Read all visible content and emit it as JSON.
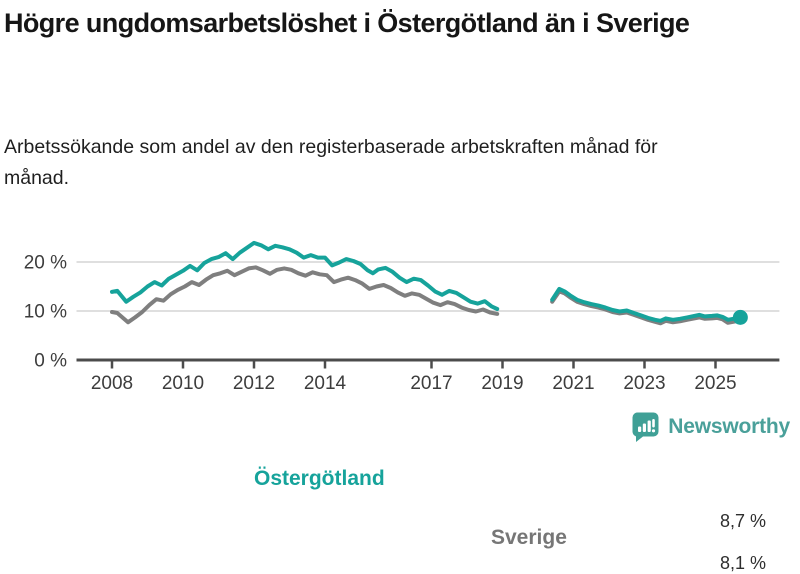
{
  "title": "Högre ungdomsarbetslöshet i Östergötland än i Sverige",
  "subtitle": "Arbetssökande som andel av den registerbaserade arbetskraften månad för månad.",
  "footer": {
    "brand": "Newsworthy",
    "logo_icon": "bar-chart-speech-bubble-icon",
    "brand_color": "#4aa09a",
    "bubble_color": "#3fa096"
  },
  "colors": {
    "ostergotland_line": "#16a39b",
    "sverige_line": "#7f7f7f",
    "gridline": "#dfdfdf",
    "axis": "#4c4c4c",
    "tick_label": "#3d3d3d"
  },
  "chart_data": {
    "type": "line",
    "title": "Högre ungdomsarbetslöshet i Östergötland än i Sverige",
    "xlabel": "",
    "ylabel": "Arbetssökande som andel av den registerbaserade arbetskraften",
    "unit": "%",
    "grid": "horizontal",
    "legend_position": "inline-labels-on-lines",
    "xlim": [
      2007.0,
      2026.8
    ],
    "ylim": [
      0,
      26
    ],
    "x_ticks": [
      2008,
      2010,
      2012,
      2014,
      2017,
      2019,
      2021,
      2023,
      2025
    ],
    "x_tick_labels": [
      "2008",
      "2010",
      "2012",
      "2014",
      "2017",
      "2019",
      "2021",
      "2023",
      "2025"
    ],
    "y_ticks": [
      0,
      10,
      20
    ],
    "y_tick_labels": [
      "0 %",
      "10 %",
      "20 %"
    ],
    "data_gap": "no data plotted between late 2018 and mid 2020",
    "series": [
      {
        "name": "Sverige",
        "color": "#7f7f7f",
        "end_label": "8,1 %",
        "end_value": 8.1,
        "end_dot": false,
        "segments": [
          [
            [
              2008.0,
              9.8
            ],
            [
              2008.15,
              9.6
            ],
            [
              2008.45,
              7.7
            ],
            [
              2008.65,
              8.7
            ],
            [
              2008.85,
              9.8
            ],
            [
              2009.05,
              11.2
            ],
            [
              2009.25,
              12.4
            ],
            [
              2009.45,
              12.1
            ],
            [
              2009.65,
              13.4
            ],
            [
              2009.85,
              14.3
            ],
            [
              2010.05,
              15.0
            ],
            [
              2010.25,
              15.9
            ],
            [
              2010.45,
              15.3
            ],
            [
              2010.65,
              16.4
            ],
            [
              2010.85,
              17.3
            ],
            [
              2011.05,
              17.7
            ],
            [
              2011.25,
              18.2
            ],
            [
              2011.45,
              17.3
            ],
            [
              2011.65,
              18.0
            ],
            [
              2011.85,
              18.7
            ],
            [
              2012.05,
              18.9
            ],
            [
              2012.25,
              18.3
            ],
            [
              2012.45,
              17.6
            ],
            [
              2012.65,
              18.4
            ],
            [
              2012.85,
              18.7
            ],
            [
              2013.05,
              18.4
            ],
            [
              2013.25,
              17.7
            ],
            [
              2013.45,
              17.2
            ],
            [
              2013.65,
              17.9
            ],
            [
              2013.85,
              17.5
            ],
            [
              2014.05,
              17.3
            ],
            [
              2014.25,
              15.9
            ],
            [
              2014.45,
              16.4
            ],
            [
              2014.65,
              16.8
            ],
            [
              2014.85,
              16.3
            ],
            [
              2015.05,
              15.6
            ],
            [
              2015.25,
              14.5
            ],
            [
              2015.45,
              15.0
            ],
            [
              2015.65,
              15.3
            ],
            [
              2015.85,
              14.7
            ],
            [
              2016.05,
              13.8
            ],
            [
              2016.25,
              13.1
            ],
            [
              2016.45,
              13.6
            ],
            [
              2016.65,
              13.3
            ],
            [
              2016.85,
              12.5
            ],
            [
              2017.05,
              11.7
            ],
            [
              2017.25,
              11.2
            ],
            [
              2017.45,
              11.8
            ],
            [
              2017.65,
              11.4
            ],
            [
              2017.85,
              10.7
            ],
            [
              2018.05,
              10.2
            ],
            [
              2018.25,
              9.9
            ],
            [
              2018.45,
              10.3
            ],
            [
              2018.65,
              9.7
            ],
            [
              2018.85,
              9.4
            ]
          ],
          [
            [
              2020.4,
              11.9
            ],
            [
              2020.6,
              14.0
            ],
            [
              2020.75,
              13.6
            ],
            [
              2020.9,
              12.8
            ],
            [
              2021.1,
              11.9
            ],
            [
              2021.3,
              11.4
            ],
            [
              2021.5,
              11.0
            ],
            [
              2021.7,
              10.7
            ],
            [
              2021.9,
              10.3
            ],
            [
              2022.1,
              9.8
            ],
            [
              2022.3,
              9.5
            ],
            [
              2022.5,
              9.7
            ],
            [
              2022.7,
              9.2
            ],
            [
              2022.9,
              8.7
            ],
            [
              2023.1,
              8.2
            ],
            [
              2023.3,
              7.8
            ],
            [
              2023.45,
              7.5
            ],
            [
              2023.6,
              8.0
            ],
            [
              2023.8,
              7.7
            ],
            [
              2024.0,
              7.9
            ],
            [
              2024.2,
              8.2
            ],
            [
              2024.4,
              8.5
            ],
            [
              2024.55,
              8.7
            ],
            [
              2024.7,
              8.4
            ],
            [
              2024.9,
              8.5
            ],
            [
              2025.05,
              8.6
            ],
            [
              2025.2,
              8.3
            ],
            [
              2025.35,
              7.6
            ],
            [
              2025.5,
              7.8
            ],
            [
              2025.7,
              8.1
            ]
          ]
        ]
      },
      {
        "name": "Östergötland",
        "color": "#16a39b",
        "end_label": "8,7 %",
        "end_value": 8.7,
        "end_dot": true,
        "segments": [
          [
            [
              2008.0,
              13.9
            ],
            [
              2008.15,
              14.1
            ],
            [
              2008.4,
              11.9
            ],
            [
              2008.6,
              12.9
            ],
            [
              2008.8,
              13.8
            ],
            [
              2009.0,
              15.0
            ],
            [
              2009.2,
              15.9
            ],
            [
              2009.4,
              15.2
            ],
            [
              2009.6,
              16.6
            ],
            [
              2009.8,
              17.4
            ],
            [
              2010.0,
              18.2
            ],
            [
              2010.2,
              19.2
            ],
            [
              2010.4,
              18.3
            ],
            [
              2010.6,
              19.8
            ],
            [
              2010.8,
              20.6
            ],
            [
              2011.0,
              21.0
            ],
            [
              2011.2,
              21.8
            ],
            [
              2011.4,
              20.6
            ],
            [
              2011.6,
              21.9
            ],
            [
              2011.8,
              22.9
            ],
            [
              2012.0,
              23.9
            ],
            [
              2012.2,
              23.4
            ],
            [
              2012.4,
              22.6
            ],
            [
              2012.6,
              23.3
            ],
            [
              2012.8,
              23.0
            ],
            [
              2013.0,
              22.6
            ],
            [
              2013.2,
              21.9
            ],
            [
              2013.4,
              20.9
            ],
            [
              2013.6,
              21.4
            ],
            [
              2013.8,
              20.9
            ],
            [
              2014.0,
              20.9
            ],
            [
              2014.2,
              19.3
            ],
            [
              2014.4,
              19.9
            ],
            [
              2014.6,
              20.6
            ],
            [
              2014.8,
              20.2
            ],
            [
              2015.0,
              19.6
            ],
            [
              2015.2,
              18.3
            ],
            [
              2015.35,
              17.7
            ],
            [
              2015.5,
              18.5
            ],
            [
              2015.7,
              18.8
            ],
            [
              2015.9,
              18.0
            ],
            [
              2016.1,
              16.8
            ],
            [
              2016.3,
              15.9
            ],
            [
              2016.5,
              16.6
            ],
            [
              2016.7,
              16.3
            ],
            [
              2016.9,
              15.2
            ],
            [
              2017.1,
              14.0
            ],
            [
              2017.3,
              13.3
            ],
            [
              2017.5,
              14.1
            ],
            [
              2017.7,
              13.7
            ],
            [
              2017.9,
              12.8
            ],
            [
              2018.1,
              11.9
            ],
            [
              2018.3,
              11.5
            ],
            [
              2018.5,
              12.0
            ],
            [
              2018.7,
              10.9
            ],
            [
              2018.85,
              10.4
            ]
          ],
          [
            [
              2020.4,
              12.3
            ],
            [
              2020.6,
              14.5
            ],
            [
              2020.75,
              14.0
            ],
            [
              2020.9,
              13.2
            ],
            [
              2021.1,
              12.3
            ],
            [
              2021.3,
              11.8
            ],
            [
              2021.5,
              11.4
            ],
            [
              2021.7,
              11.1
            ],
            [
              2021.9,
              10.7
            ],
            [
              2022.1,
              10.2
            ],
            [
              2022.3,
              9.9
            ],
            [
              2022.5,
              10.1
            ],
            [
              2022.7,
              9.6
            ],
            [
              2022.9,
              9.1
            ],
            [
              2023.1,
              8.6
            ],
            [
              2023.3,
              8.2
            ],
            [
              2023.45,
              8.0
            ],
            [
              2023.6,
              8.5
            ],
            [
              2023.8,
              8.2
            ],
            [
              2024.0,
              8.4
            ],
            [
              2024.2,
              8.7
            ],
            [
              2024.4,
              9.0
            ],
            [
              2024.55,
              9.2
            ],
            [
              2024.7,
              8.9
            ],
            [
              2024.9,
              9.0
            ],
            [
              2025.05,
              9.1
            ],
            [
              2025.2,
              8.8
            ],
            [
              2025.35,
              8.2
            ],
            [
              2025.5,
              8.4
            ],
            [
              2025.7,
              8.7
            ]
          ]
        ]
      }
    ]
  }
}
